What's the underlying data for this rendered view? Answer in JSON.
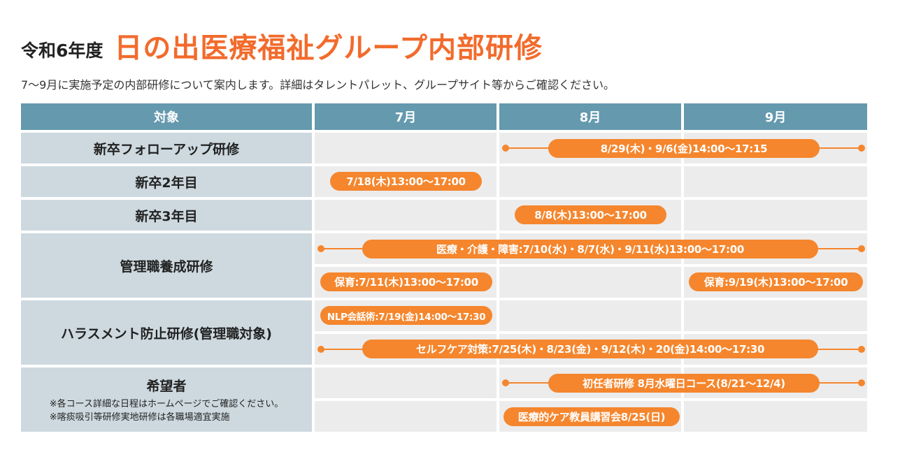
{
  "title": {
    "prefix": "令和6年度",
    "main": "日の出医療福祉グループ内部研修"
  },
  "subtitle": "7～9月に実施予定の内部研修について案内します。詳細はタレントパレット、グループサイト等からご確認ください。",
  "table": {
    "headers": [
      "対象",
      "7月",
      "8月",
      "9月"
    ],
    "rows": {
      "new_followup": "新卒フォローアップ研修",
      "new_2nd": "新卒2年目",
      "new_3rd": "新卒3年目",
      "management": "管理職養成研修",
      "harassment": "ハラスメント防止研修(管理職対象)",
      "applicants": {
        "label": "希望者",
        "note1": "※各コース詳細な日程はホームページでご確認ください。",
        "note2": "※喀痰吸引等研修実地研修は各職場適宜実施"
      }
    },
    "events": {
      "followup": "8/29(木)・9/6(金)14:00～17:15",
      "second_year": "7/18(木)13:00～17:00",
      "third_year": "8/8(木)13:00～17:00",
      "mgmt_medical": "医療・介護・障害:7/10(水)・8/7(水)・9/11(水)13:00～17:00",
      "mgmt_nursery_jul": "保育:7/11(木)13:00～17:00",
      "mgmt_nursery_sep": "保育:9/19(木)13:00～17:00",
      "nlp": "NLP会話術:7/19(金)14:00～17:30",
      "selfcare": "セルフケア対策:7/25(木)・8/23(金)・9/12(木)・20(金)14:00～17:30",
      "new_staff": "初任者研修 8月水曜日コース(8/21～12/4)",
      "medical_care": "医療的ケア教員講習会8/25(日)"
    }
  },
  "colors": {
    "accent": "#f26b2c",
    "pill": "#f5862d",
    "header": "#6499ae",
    "label_bg": "#cdd9df",
    "cell_bg": "#ececec"
  }
}
